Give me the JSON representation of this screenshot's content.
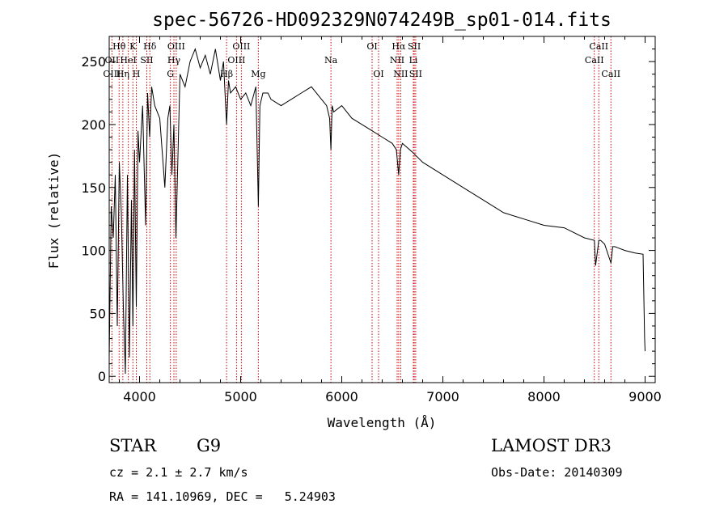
{
  "chart_data": {
    "type": "line",
    "title": "spec-56726-HD092329N074249B_sp01-014.fits",
    "xlabel": "Wavelength (Å)",
    "ylabel": "Flux (relative)",
    "xlim": [
      3700,
      9100
    ],
    "ylim": [
      -5,
      270
    ],
    "xticks": [
      4000,
      5000,
      6000,
      7000,
      8000,
      9000
    ],
    "xtick_labels": [
      "4000",
      "5000",
      "6000",
      "7000",
      "8000",
      "9000"
    ],
    "yticks": [
      0,
      50,
      100,
      150,
      200,
      250
    ],
    "ytick_labels": [
      "0",
      "50",
      "100",
      "150",
      "200",
      "250"
    ],
    "spectral_lines": [
      {
        "label": "Hθ",
        "wavelength": 3798,
        "row": 0
      },
      {
        "label": "K",
        "wavelength": 3934,
        "row": 0
      },
      {
        "label": "Hδ",
        "wavelength": 4102,
        "row": 0
      },
      {
        "label": "OIII",
        "wavelength": 4363,
        "row": 0
      },
      {
        "label": "OIII",
        "wavelength": 5007,
        "row": 0
      },
      {
        "label": "OI",
        "wavelength": 6300,
        "row": 0
      },
      {
        "label": "Hα",
        "wavelength": 6563,
        "row": 0
      },
      {
        "label": "SII",
        "wavelength": 6717,
        "row": 0
      },
      {
        "label": "CaII",
        "wavelength": 8542,
        "row": 0
      },
      {
        "label": "OII",
        "wavelength": 3727,
        "row": 1
      },
      {
        "label": "HeI",
        "wavelength": 3889,
        "row": 1
      },
      {
        "label": "SII",
        "wavelength": 4072,
        "row": 1
      },
      {
        "label": "Hγ",
        "wavelength": 4340,
        "row": 1
      },
      {
        "label": "OIII",
        "wavelength": 4959,
        "row": 1
      },
      {
        "label": "Na",
        "wavelength": 5893,
        "row": 1
      },
      {
        "label": "NII",
        "wavelength": 6548,
        "row": 1
      },
      {
        "label": "Li",
        "wavelength": 6708,
        "row": 1
      },
      {
        "label": "CaII",
        "wavelength": 8498,
        "row": 1
      },
      {
        "label": "OIII",
        "wavelength": 3727,
        "row": 2
      },
      {
        "label": "Hη",
        "wavelength": 3835,
        "row": 2
      },
      {
        "label": "H",
        "wavelength": 3968,
        "row": 2
      },
      {
        "label": "G",
        "wavelength": 4305,
        "row": 2
      },
      {
        "label": "Hβ",
        "wavelength": 4861,
        "row": 2
      },
      {
        "label": "Mg",
        "wavelength": 5175,
        "row": 2
      },
      {
        "label": "OI",
        "wavelength": 6364,
        "row": 2
      },
      {
        "label": "NII",
        "wavelength": 6583,
        "row": 2
      },
      {
        "label": "SII",
        "wavelength": 6731,
        "row": 2
      },
      {
        "label": "CaII",
        "wavelength": 8662,
        "row": 2
      }
    ],
    "series": [
      {
        "name": "flux",
        "x": [
          3700,
          3720,
          3740,
          3760,
          3780,
          3800,
          3820,
          3840,
          3860,
          3880,
          3900,
          3920,
          3934,
          3950,
          3968,
          3985,
          4000,
          4030,
          4060,
          4080,
          4100,
          4120,
          4150,
          4200,
          4250,
          4280,
          4300,
          4320,
          4340,
          4360,
          4400,
          4450,
          4500,
          4550,
          4600,
          4650,
          4700,
          4750,
          4800,
          4830,
          4861,
          4880,
          4900,
          4950,
          5000,
          5050,
          5100,
          5150,
          5175,
          5190,
          5220,
          5270,
          5300,
          5400,
          5500,
          5600,
          5700,
          5800,
          5850,
          5880,
          5893,
          5905,
          5920,
          6000,
          6100,
          6200,
          6300,
          6400,
          6500,
          6540,
          6563,
          6580,
          6600,
          6700,
          6800,
          7000,
          7200,
          7400,
          7600,
          7800,
          8000,
          8200,
          8400,
          8498,
          8510,
          8542,
          8560,
          8600,
          8662,
          8680,
          8700,
          8800,
          8900,
          8980,
          8995,
          9000
        ],
        "y": [
          15,
          135,
          110,
          160,
          40,
          170,
          130,
          55,
          2,
          160,
          15,
          140,
          40,
          180,
          55,
          195,
          170,
          215,
          120,
          225,
          190,
          230,
          215,
          205,
          150,
          205,
          215,
          160,
          200,
          110,
          240,
          230,
          250,
          260,
          245,
          255,
          240,
          260,
          235,
          250,
          200,
          235,
          225,
          230,
          220,
          225,
          215,
          230,
          135,
          215,
          225,
          225,
          220,
          215,
          220,
          225,
          230,
          220,
          215,
          205,
          180,
          215,
          210,
          215,
          205,
          200,
          195,
          190,
          185,
          180,
          160,
          180,
          185,
          178,
          170,
          160,
          150,
          140,
          130,
          125,
          120,
          118,
          110,
          108,
          88,
          108,
          108,
          105,
          90,
          103,
          103,
          100,
          98,
          97,
          30,
          20
        ]
      }
    ]
  },
  "info": {
    "class": "STAR",
    "subclass": "G9",
    "survey": "LAMOST DR3",
    "cz": "cz = 2.1 ± 2.7 km/s",
    "obs_date": "Obs-Date: 20140309",
    "radec": "RA = 141.10969, DEC =   5.24903"
  },
  "colors": {
    "line_marker": "#cc0000",
    "spectrum": "#000000",
    "axes": "#000000"
  }
}
